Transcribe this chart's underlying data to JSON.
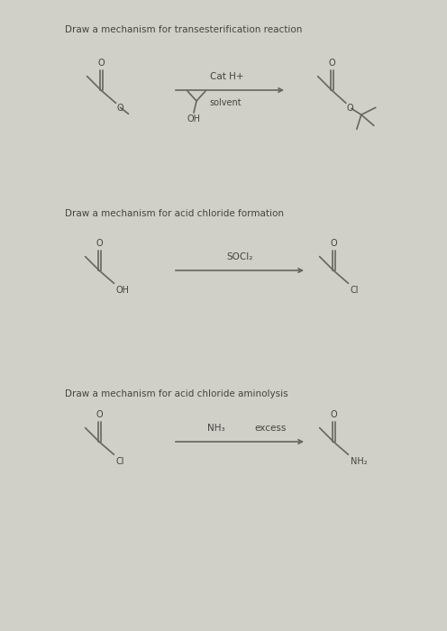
{
  "bg_color": "#d0cfc8",
  "title1": "Draw a mechanism for transesterification reaction",
  "title2": "Draw a mechanism for acid chloride formation",
  "title3": "Draw a mechanism for acid chloride aminolysis",
  "rxn1_arrow_label_top": "Cat H+",
  "rxn1_arrow_label_bot_txt": "solvent",
  "rxn2_arrow_label": "SOCl₂",
  "rxn3_arrow_label_top": "NH₃",
  "rxn3_arrow_label_bot": "excess",
  "line_color": "#666660",
  "text_color": "#444440",
  "title_font_size": 7.5,
  "chem_font_size": 7.0,
  "lw": 1.2
}
